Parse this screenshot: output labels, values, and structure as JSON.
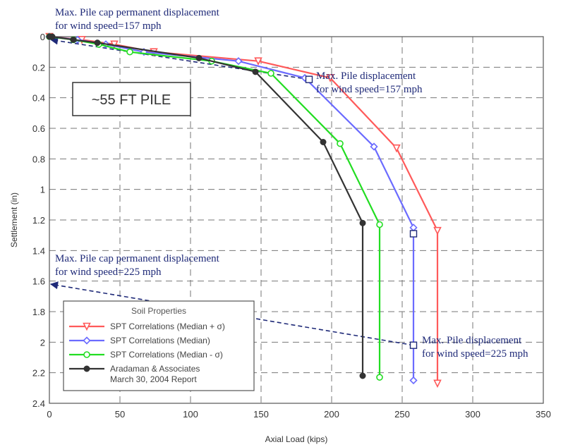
{
  "chart_data": {
    "type": "line",
    "xlabel": "Axial Load (kips)",
    "ylabel": "Settlement (in)",
    "xlim": [
      0,
      350
    ],
    "ylim": [
      0,
      2.4
    ],
    "y_inverted": true,
    "x_ticks": [
      0,
      50,
      100,
      150,
      200,
      250,
      300,
      350
    ],
    "y_ticks": [
      0,
      0.2,
      0.4,
      0.6,
      0.8,
      1,
      1.2,
      1.4,
      1.6,
      1.8,
      2,
      2.2,
      2.4
    ],
    "y_tick_labels": [
      "0",
      "0.2",
      "0.4",
      "0.6",
      "0.8",
      "1",
      "1.2",
      "1.4",
      "1.6",
      "1.8",
      "2",
      "2.2",
      "2.4"
    ],
    "grid": true,
    "legend": {
      "title": "Soil Properties",
      "placement": "bottom-left"
    },
    "series": [
      {
        "name": "SPT Correlations (Median + σ)",
        "color": "#ff5a5a",
        "marker": "triangle-down",
        "x": [
          0,
          23,
          46,
          74,
          148,
          199,
          246,
          275,
          275
        ],
        "y": [
          0,
          0.02,
          0.05,
          0.1,
          0.16,
          0.27,
          0.73,
          1.27,
          2.27
        ]
      },
      {
        "name": "SPT Correlations (Median)",
        "color": "#6b6bff",
        "marker": "diamond",
        "x": [
          0,
          20,
          40,
          67,
          134,
          181,
          230,
          258,
          258
        ],
        "y": [
          0,
          0.02,
          0.05,
          0.1,
          0.16,
          0.27,
          0.72,
          1.25,
          2.25
        ]
      },
      {
        "name": "SPT Correlations (Median - σ)",
        "color": "#22dd22",
        "marker": "circle-open",
        "x": [
          0,
          17,
          35,
          57,
          115,
          157,
          206,
          234,
          234
        ],
        "y": [
          0,
          0.02,
          0.05,
          0.1,
          0.16,
          0.24,
          0.7,
          1.23,
          2.23
        ]
      },
      {
        "name": "Aradaman & Associates\nMarch 30, 2004 Report",
        "color": "#333333",
        "marker": "circle-filled",
        "x": [
          0,
          2,
          17,
          34,
          106,
          146,
          194,
          222,
          222
        ],
        "y": [
          0,
          0,
          0.02,
          0.04,
          0.14,
          0.23,
          0.69,
          1.22,
          2.22
        ]
      }
    ],
    "annotations": [
      {
        "id": "cap-157",
        "lines": [
          "Max. Pile cap permanent displacement",
          "for wind speed=157 mph"
        ],
        "arrow_to": [
          0,
          0.02
        ],
        "arrow_from": [
          184,
          0.28
        ],
        "square_at": [
          184,
          0.28
        ]
      },
      {
        "id": "pile-157",
        "lines": [
          "Max. Pile displacement",
          "for wind speed=157 mph"
        ]
      },
      {
        "id": "cap-225",
        "lines": [
          "Max. Pile cap permanent displacement",
          "for wind speed=225 mph"
        ],
        "arrow_to": [
          0,
          1.62
        ],
        "arrow_from": [
          258,
          2.02
        ],
        "square_at": [
          258,
          2.02
        ]
      },
      {
        "id": "pile-225",
        "lines": [
          "Max. Pile displacement",
          "for wind speed=225 mph"
        ]
      }
    ],
    "extra_square_markers": [
      {
        "x": 258,
        "y": 1.29
      }
    ],
    "box_label": "~55 FT PILE",
    "annotation_color": "#1f2a78"
  }
}
